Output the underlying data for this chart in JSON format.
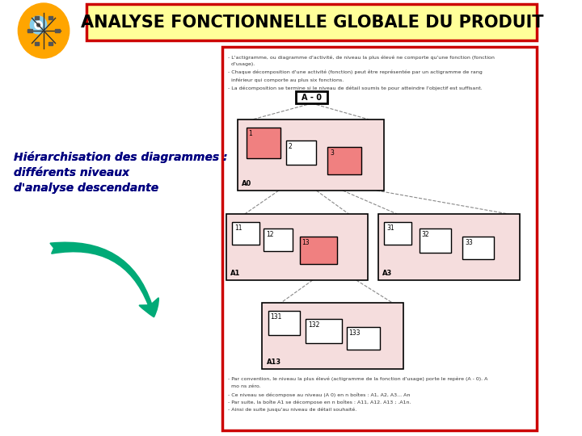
{
  "title": "ANALYSE FONCTIONNELLE GLOBALE DU PRODUIT",
  "title_bg": "#FFFF99",
  "title_border": "#CC0000",
  "title_fontsize": 15,
  "page_bg": "#FFFFFF",
  "right_panel_border": "#CC0000",
  "left_text_lines": [
    "Hiérarchisation des diagrammes :",
    "différents niveaux",
    "d'analyse descendante"
  ],
  "top_note_lines": [
    "- L'actigramme, ou diagramme d'activité, de niveau la plus élevé ne comporte qu'une fonction (fonction",
    "  d'usage).",
    "- Chaque décomposition d'une activité (fonction) peut être représentée par un actigramme de rang",
    "  inférieur qui comporte au plus six fonctions.",
    "- La décomposition se termine si le niveau de détail soumis te pour atteindre l'objectif est suffisant."
  ],
  "bottom_note_lines": [
    "- Par convention, le niveau la plus élevé (actigramme de la fonction d'usage) porte le repère (A - 0). A",
    "  mo ns zéro.",
    "- Ce niveau se décompose au niveau (A 0) en n boîtes : A1, A2, A3... An",
    "- Par suite, la boîte A1 se décompose en n boîtes : A11, A12. A13 ; .A1n.",
    "- Ainsi de suite jusqu'au niveau de détail souhaité."
  ],
  "box_pink_dark": "#F08080",
  "box_bg_panel": "#F5DDDD",
  "arrow_color": "#00AA77",
  "icon_color": "#FFA500"
}
